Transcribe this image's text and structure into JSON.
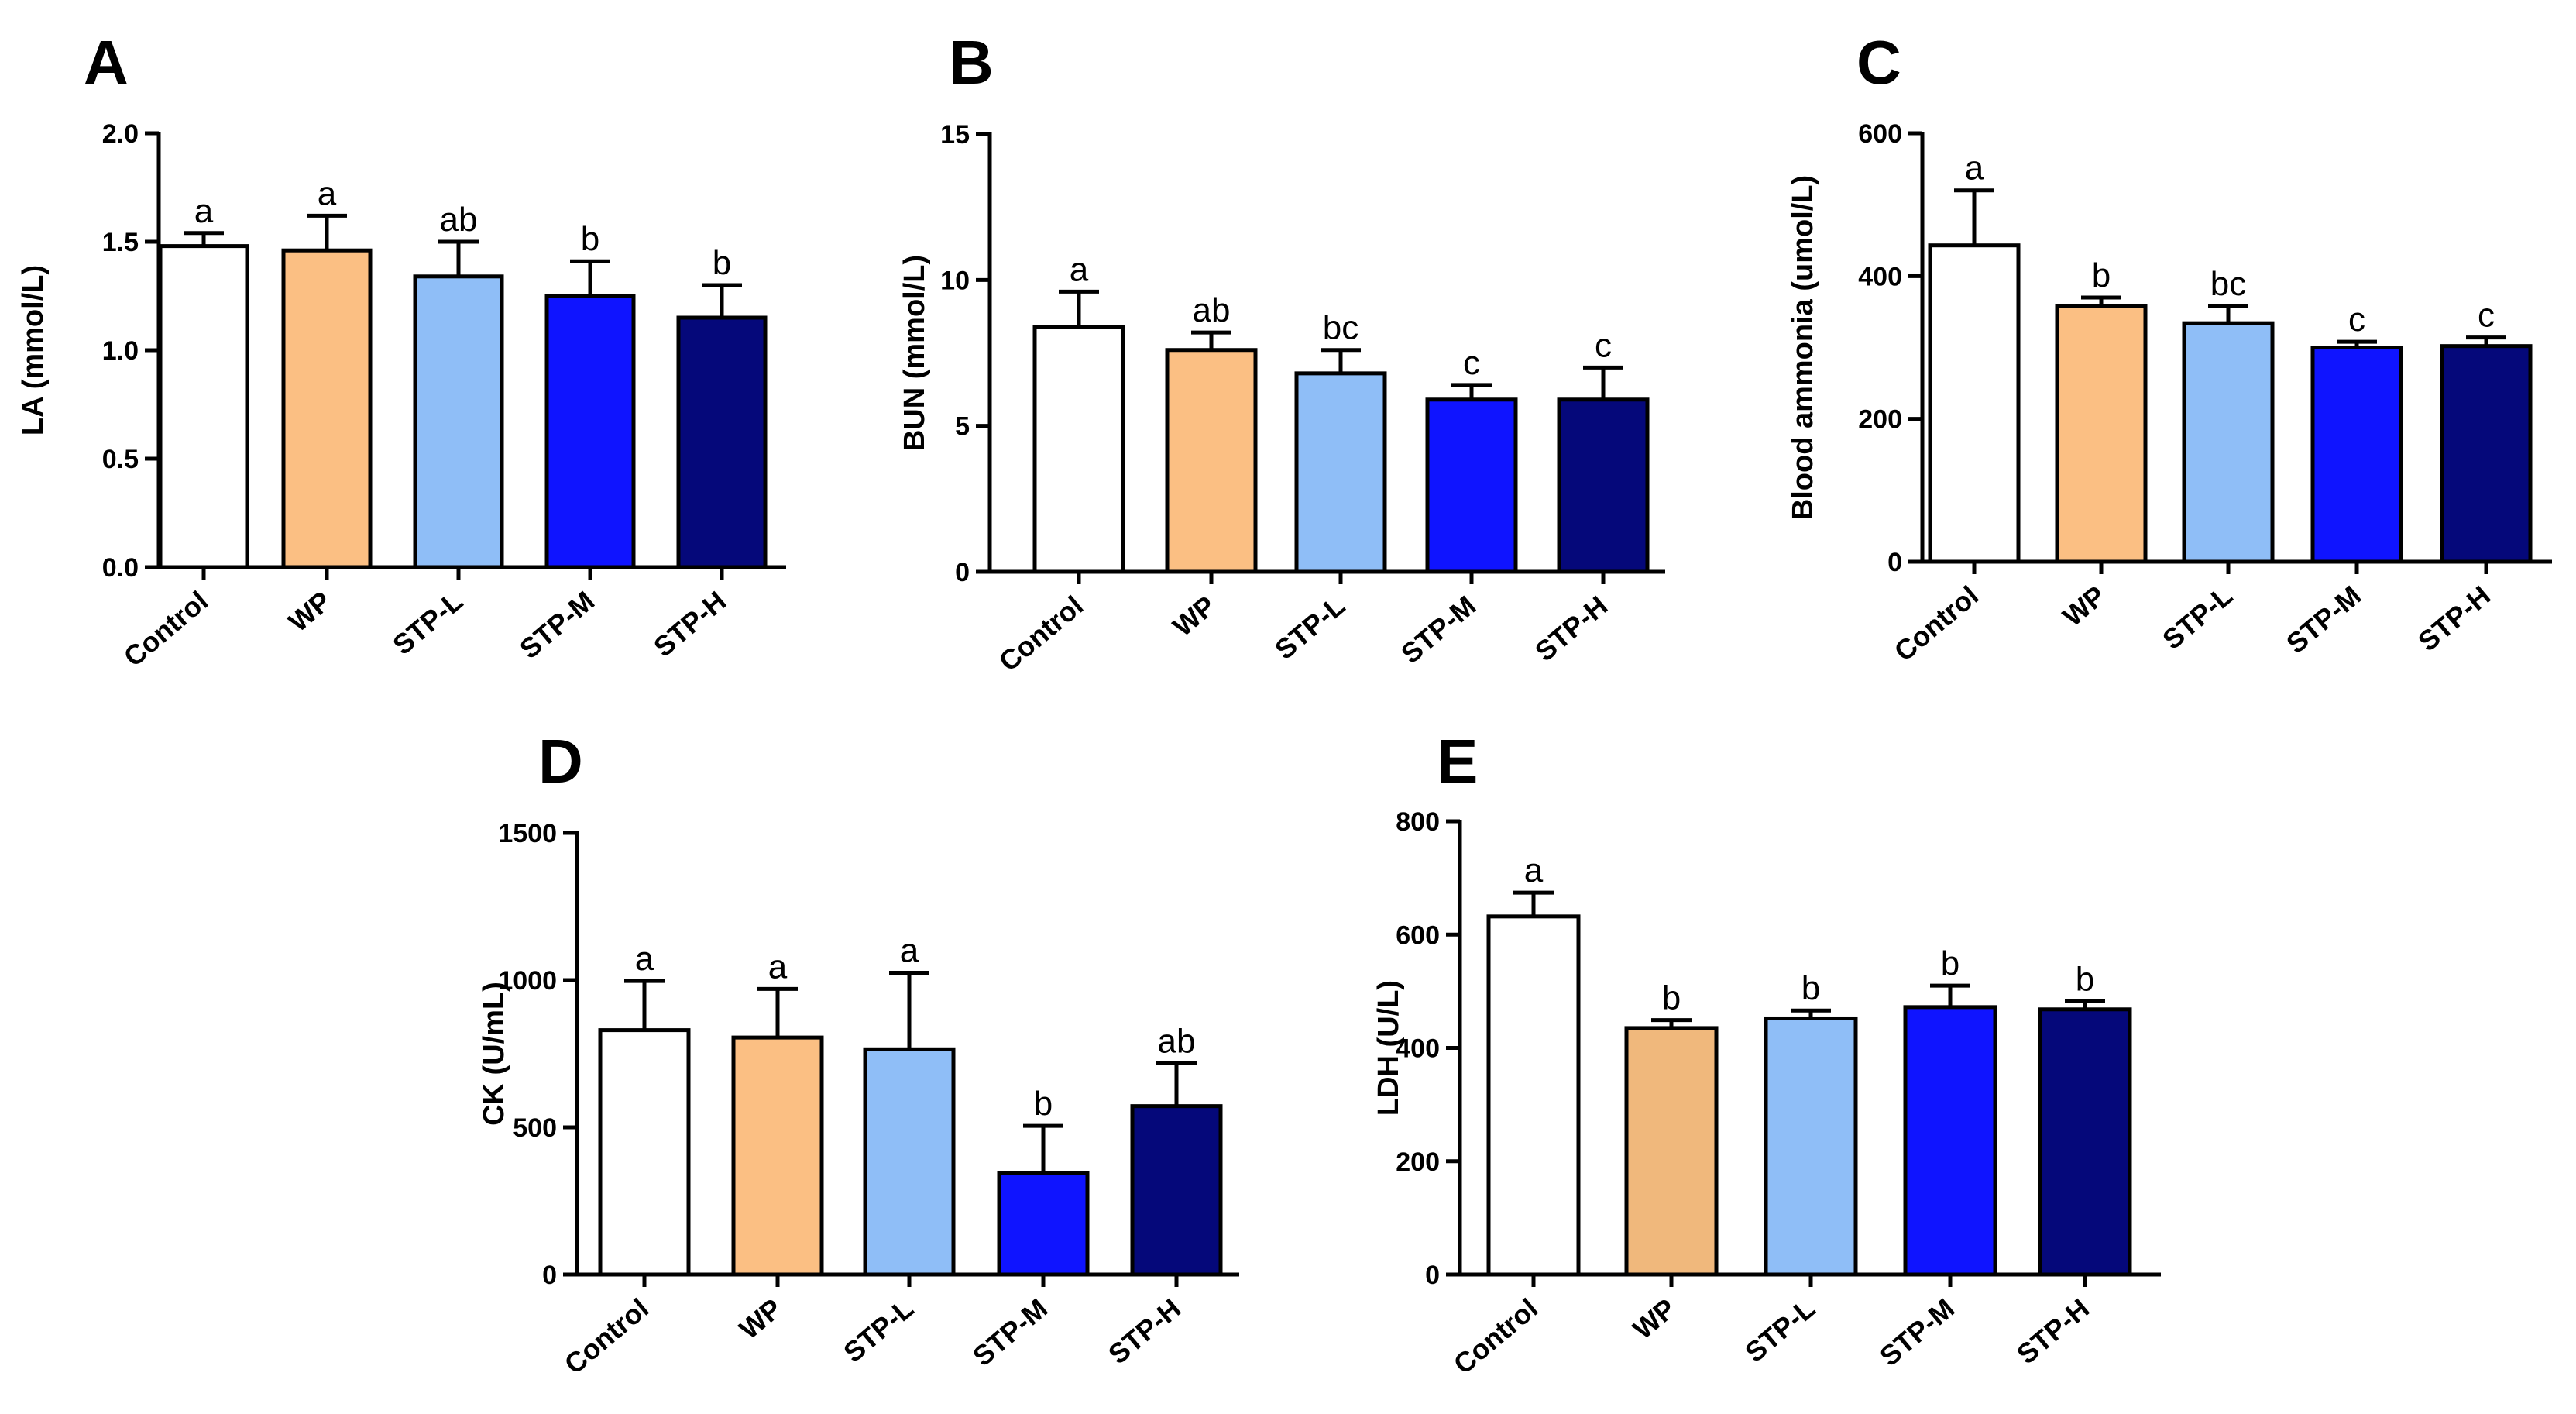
{
  "figure": {
    "categories": [
      "Control",
      "WP",
      "STP-L",
      "STP-M",
      "STP-H"
    ]
  },
  "colors": {
    "Control": "#ffffff",
    "WP": "#fbbf83",
    "WP_E": "#f0b87c",
    "STP-L": "#8fbef7",
    "STP-M": "#0f14ff",
    "STP-H": "#05087a",
    "axis": "#000000"
  },
  "chart_data": [
    {
      "panel": "A",
      "type": "bar",
      "ylabel": "LA (mmol/L)",
      "categories": [
        "Control",
        "WP",
        "STP-L",
        "STP-M",
        "STP-H"
      ],
      "values": [
        1.48,
        1.46,
        1.34,
        1.25,
        1.15
      ],
      "errors": [
        0.06,
        0.16,
        0.16,
        0.16,
        0.15
      ],
      "labels": [
        "a",
        "a",
        "ab",
        "b",
        "b"
      ],
      "ylim": [
        0,
        2.0
      ],
      "yticks": [
        0.0,
        0.5,
        1.0,
        1.5,
        2.0
      ],
      "ytick_labels": [
        "0.0",
        "0.5",
        "1.0",
        "1.5",
        "2.0"
      ]
    },
    {
      "panel": "B",
      "type": "bar",
      "ylabel": "BUN (mmol/L)",
      "categories": [
        "Control",
        "WP",
        "STP-L",
        "STP-M",
        "STP-H"
      ],
      "values": [
        8.4,
        7.6,
        6.8,
        5.9,
        5.9
      ],
      "errors": [
        1.2,
        0.6,
        0.8,
        0.5,
        1.1
      ],
      "labels": [
        "a",
        "ab",
        "bc",
        "c",
        "c"
      ],
      "ylim": [
        0,
        15
      ],
      "yticks": [
        0,
        5,
        10,
        15
      ],
      "ytick_labels": [
        "0",
        "5",
        "10",
        "15"
      ]
    },
    {
      "panel": "C",
      "type": "bar",
      "ylabel": "Blood ammonia (umol/L)",
      "categories": [
        "Control",
        "WP",
        "STP-L",
        "STP-M",
        "STP-H"
      ],
      "values": [
        443,
        358,
        334,
        300,
        302
      ],
      "errors": [
        77,
        12,
        24,
        8,
        12
      ],
      "labels": [
        "a",
        "b",
        "bc",
        "c",
        "c"
      ],
      "ylim": [
        0,
        600
      ],
      "yticks": [
        0,
        200,
        400,
        600
      ],
      "ytick_labels": [
        "0",
        "200",
        "400",
        "600"
      ]
    },
    {
      "panel": "D",
      "type": "bar",
      "ylabel": "CK (U/mL)",
      "categories": [
        "Control",
        "WP",
        "STP-L",
        "STP-M",
        "STP-H"
      ],
      "values": [
        830,
        805,
        765,
        345,
        572
      ],
      "errors": [
        167,
        165,
        260,
        160,
        145
      ],
      "labels": [
        "a",
        "a",
        "a",
        "b",
        "ab"
      ],
      "ylim": [
        0,
        1500
      ],
      "yticks": [
        0,
        500,
        1000,
        1500
      ],
      "ytick_labels": [
        "0",
        "500",
        "1000",
        "1500"
      ]
    },
    {
      "panel": "E",
      "type": "bar",
      "ylabel": "LDH (U/L)",
      "categories": [
        "Control",
        "WP",
        "STP-L",
        "STP-M",
        "STP-H"
      ],
      "values": [
        632,
        435,
        452,
        472,
        468
      ],
      "errors": [
        42,
        14,
        14,
        38,
        14
      ],
      "labels": [
        "a",
        "b",
        "b",
        "b",
        "b"
      ],
      "ylim": [
        0,
        800
      ],
      "yticks": [
        0,
        200,
        400,
        600,
        800
      ],
      "ytick_labels": [
        "0",
        "200",
        "400",
        "600",
        "800"
      ]
    }
  ]
}
